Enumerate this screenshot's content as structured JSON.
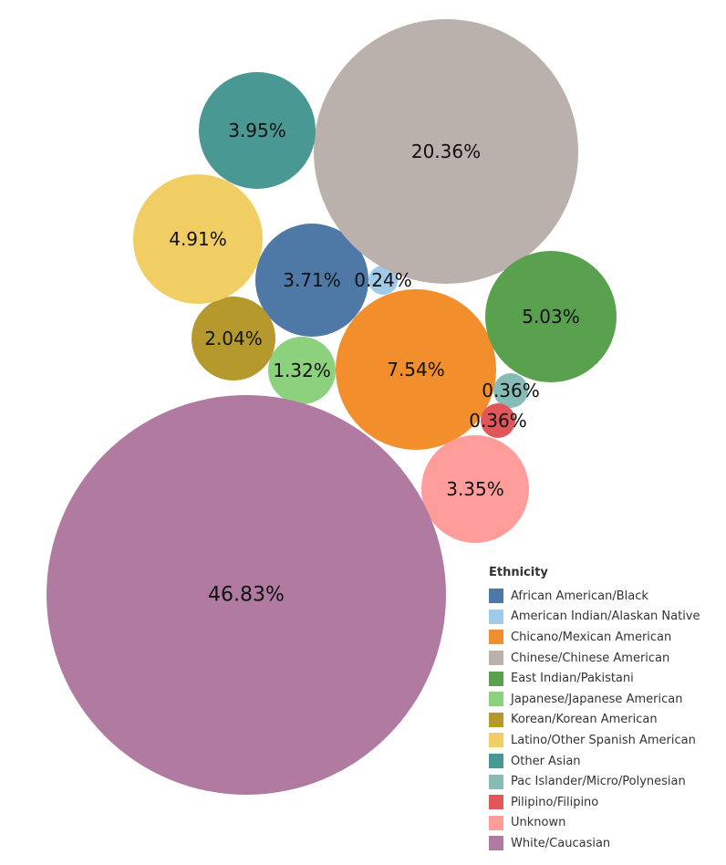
{
  "chart_data": {
    "type": "bubble",
    "title": "",
    "legend": {
      "title": "Ethnicity",
      "placement": "bottom-right"
    },
    "series": [
      {
        "name": "African American/Black",
        "label": "3.71%",
        "value": 3.71,
        "color": "#4e79a7"
      },
      {
        "name": "American Indian/Alaskan Native",
        "label": "0.24%",
        "value": 0.24,
        "color": "#a0cbe8"
      },
      {
        "name": "Chicano/Mexican American",
        "label": "7.54%",
        "value": 7.54,
        "color": "#f28e2b"
      },
      {
        "name": "Chinese/Chinese American",
        "label": "20.36%",
        "value": 20.36,
        "color": "#bab0ac"
      },
      {
        "name": "East Indian/Pakistani",
        "label": "5.03%",
        "value": 5.03,
        "color": "#59a14f"
      },
      {
        "name": "Japanese/Japanese American",
        "label": "1.32%",
        "value": 1.32,
        "color": "#8cd17d"
      },
      {
        "name": "Korean/Korean American",
        "label": "2.04%",
        "value": 2.04,
        "color": "#b6992d"
      },
      {
        "name": "Latino/Other Spanish American",
        "label": "4.91%",
        "value": 4.91,
        "color": "#f1ce63"
      },
      {
        "name": "Other Asian",
        "label": "3.95%",
        "value": 3.95,
        "color": "#499894"
      },
      {
        "name": "Pac Islander/Micro/Polynesian",
        "label": "0.36%",
        "value": 0.36,
        "color": "#86bcb6"
      },
      {
        "name": "Pilipino/Filipino",
        "label": "0.36%",
        "value": 0.36,
        "color": "#e15759"
      },
      {
        "name": "Unknown",
        "label": "3.35%",
        "value": 3.35,
        "color": "#ff9d9a"
      },
      {
        "name": "White/Caucasian",
        "label": "46.83%",
        "value": 46.83,
        "color": "#b07aa1"
      }
    ]
  }
}
